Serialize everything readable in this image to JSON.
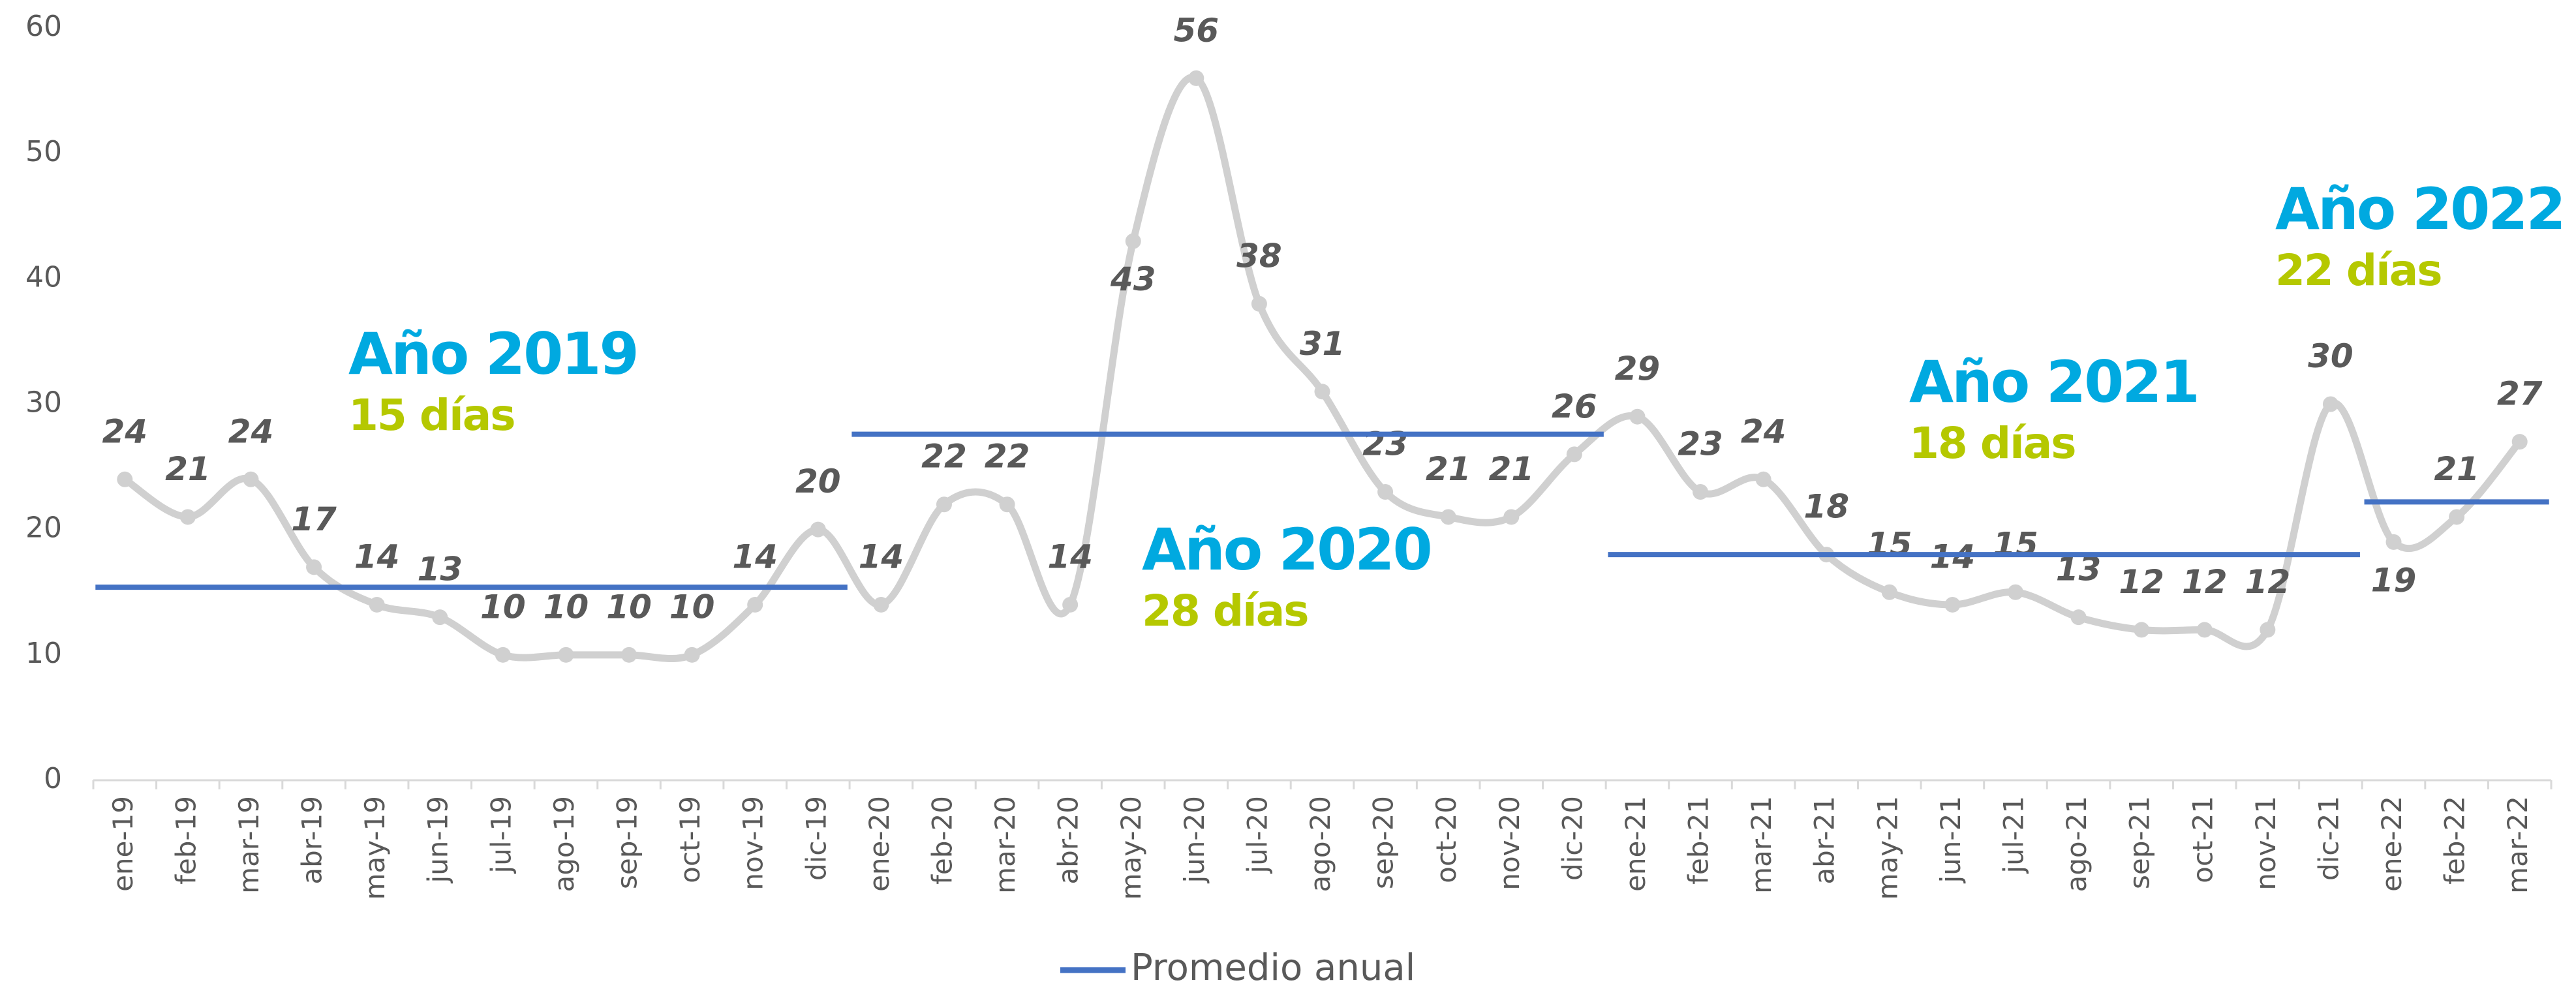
{
  "chart_data": {
    "type": "line",
    "categories": [
      "ene-19",
      "feb-19",
      "mar-19",
      "abr-19",
      "may-19",
      "jun-19",
      "jul-19",
      "ago-19",
      "sep-19",
      "oct-19",
      "nov-19",
      "dic-19",
      "ene-20",
      "feb-20",
      "mar-20",
      "abr-20",
      "may-20",
      "jun-20",
      "jul-20",
      "ago-20",
      "sep-20",
      "oct-20",
      "nov-20",
      "dic-20",
      "ene-21",
      "feb-21",
      "mar-21",
      "abr-21",
      "may-21",
      "jun-21",
      "jul-21",
      "ago-21",
      "sep-21",
      "oct-21",
      "nov-21",
      "dic-21",
      "ene-22",
      "feb-22",
      "mar-22"
    ],
    "series": [
      {
        "color": "#d0d0d0",
        "values": [
          24,
          21,
          24,
          17,
          14,
          13,
          10,
          10,
          10,
          10,
          14,
          20,
          14,
          22,
          22,
          14,
          43,
          56,
          38,
          31,
          23,
          21,
          21,
          26,
          29,
          23,
          24,
          18,
          15,
          14,
          15,
          13,
          12,
          12,
          12,
          30,
          19,
          21,
          27
        ]
      },
      {
        "name": "Promedio anual",
        "color": "#4472c4",
        "values": [
          15.4,
          15.4,
          15.4,
          15.4,
          15.4,
          15.4,
          15.4,
          15.4,
          15.4,
          15.4,
          15.4,
          15.4,
          27.6,
          27.6,
          27.6,
          27.6,
          27.6,
          27.6,
          27.6,
          27.6,
          27.6,
          27.6,
          27.6,
          27.6,
          18,
          18,
          18,
          18,
          18,
          18,
          18,
          18,
          18,
          18,
          18,
          18,
          22.2,
          22.2,
          22.2
        ]
      }
    ],
    "annotations": [
      {
        "title": "Año 2019",
        "text": "15 días"
      },
      {
        "title": "Año 2020",
        "text": "28 días"
      },
      {
        "title": "Año 2021",
        "text": "18 días"
      },
      {
        "title": "Año 2022",
        "text": "22 días"
      }
    ],
    "ylim": [
      0,
      60
    ],
    "yticks": [
      0,
      10,
      20,
      30,
      40,
      50,
      60
    ],
    "legend": "bottom"
  }
}
